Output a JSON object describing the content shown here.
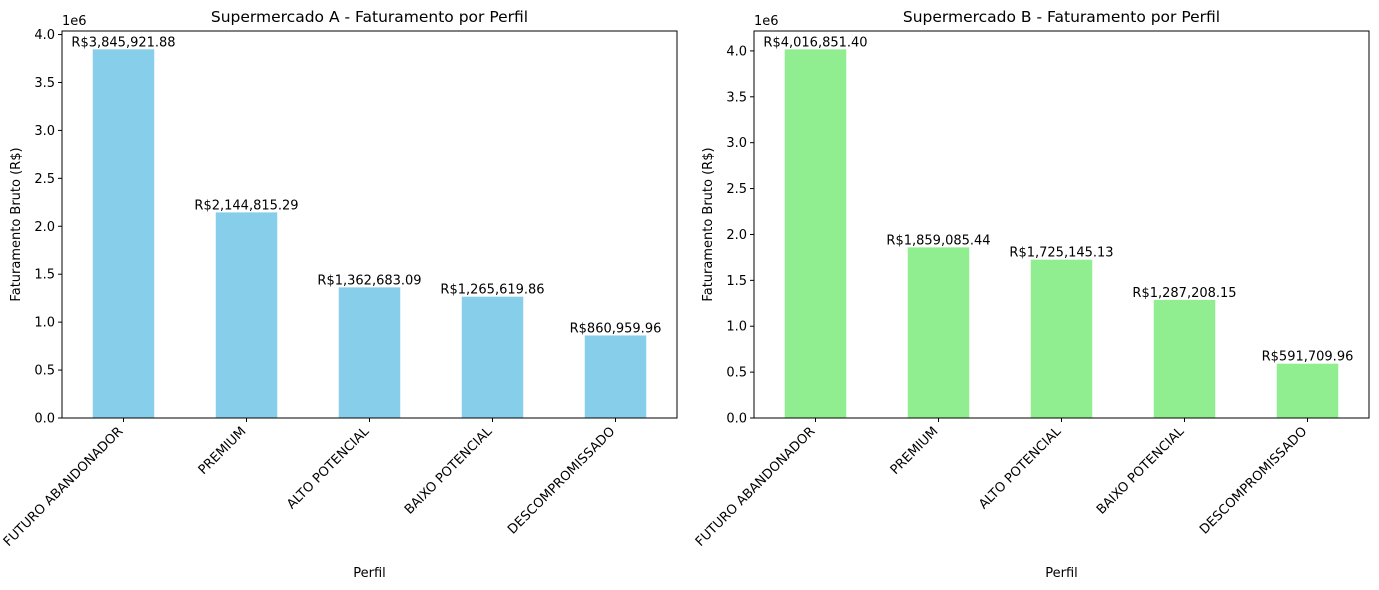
{
  "chart_data": [
    {
      "type": "bar",
      "title": "Supermercado A - Faturamento por Perfil",
      "xlabel": "Perfil",
      "ylabel": "Faturamento Bruto (R$)",
      "offset_label": "1e6",
      "ylim": [
        0,
        4037000
      ],
      "yticks": [
        0,
        500000,
        1000000,
        1500000,
        2000000,
        2500000,
        3000000,
        3500000,
        4000000
      ],
      "ytick_labels": [
        "0.0",
        "0.5",
        "1.0",
        "1.5",
        "2.0",
        "2.5",
        "3.0",
        "3.5",
        "4.0"
      ],
      "categories": [
        "FUTURO ABANDONADOR",
        "PREMIUM",
        "ALTO POTENCIAL",
        "BAIXO POTENCIAL",
        "DESCOMPROMISSADO"
      ],
      "values": [
        3845921.88,
        2144815.29,
        1362683.09,
        1265619.86,
        860959.96
      ],
      "data_labels": [
        "R$3,845,921.88",
        "R$2,144,815.29",
        "R$1,362,683.09",
        "R$1,265,619.86",
        "R$860,959.96"
      ],
      "color": "#87CEEB",
      "grid": false
    },
    {
      "type": "bar",
      "title": "Supermercado B - Faturamento por Perfil",
      "xlabel": "Perfil",
      "ylabel": "Faturamento Bruto (R$)",
      "offset_label": "1e6",
      "ylim": [
        0,
        4217000
      ],
      "yticks": [
        0,
        500000,
        1000000,
        1500000,
        2000000,
        2500000,
        3000000,
        3500000,
        4000000
      ],
      "ytick_labels": [
        "0.0",
        "0.5",
        "1.0",
        "1.5",
        "2.0",
        "2.5",
        "3.0",
        "3.5",
        "4.0"
      ],
      "categories": [
        "FUTURO ABANDONADOR",
        "PREMIUM",
        "ALTO POTENCIAL",
        "BAIXO POTENCIAL",
        "DESCOMPROMISSADO"
      ],
      "values": [
        4016851.4,
        1859085.44,
        1725145.13,
        1287208.15,
        591709.96
      ],
      "data_labels": [
        "R$4,016,851.40",
        "R$1,859,085.44",
        "R$1,725,145.13",
        "R$1,287,208.15",
        "R$591,709.96"
      ],
      "color": "#90EE90",
      "grid": false
    }
  ]
}
